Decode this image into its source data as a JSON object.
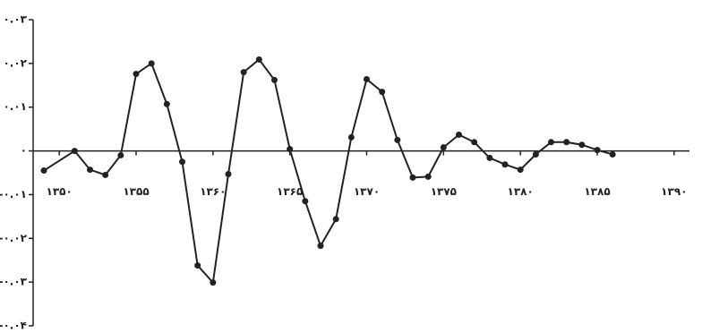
{
  "chart_data": {
    "type": "line",
    "x": [
      1349,
      1351,
      1352,
      1353,
      1354,
      1355,
      1356,
      1357,
      1358,
      1359,
      1360,
      1361,
      1362,
      1363,
      1364,
      1365,
      1366,
      1367,
      1368,
      1369,
      1370,
      1371,
      1372,
      1373,
      1374,
      1375,
      1376,
      1377,
      1378,
      1379,
      1380,
      1381,
      1382,
      1383,
      1384,
      1385,
      1386
    ],
    "values": [
      -0.0045,
      0,
      -0.0043,
      -0.0055,
      -0.001,
      0.0176,
      0.02,
      0.0107,
      -0.0025,
      -0.0262,
      -0.0301,
      -0.0053,
      0.018,
      0.0209,
      0.0162,
      0.0004,
      -0.0115,
      -0.0217,
      -0.0156,
      0.0031,
      0.0164,
      0.0135,
      0.0025,
      -0.0061,
      -0.0059,
      0.0008,
      0.0037,
      0.002,
      -0.0016,
      -0.0031,
      -0.0043,
      -0.0008,
      0.002,
      0.002,
      0.0014,
      0.0002,
      -0.0008
    ],
    "color": "#222222",
    "xlim": [
      1348.3,
      1391
    ],
    "xticks": [
      {
        "value": 1350,
        "label": "۱۳۵۰"
      },
      {
        "value": 1355,
        "label": "۱۳۵۵"
      },
      {
        "value": 1360,
        "label": "۱۳۶۰"
      },
      {
        "value": 1365,
        "label": "۱۳۶۵"
      },
      {
        "value": 1370,
        "label": "۱۳۷۰"
      },
      {
        "value": 1375,
        "label": "۱۳۷۵"
      },
      {
        "value": 1380,
        "label": "۱۳۸۰"
      },
      {
        "value": 1385,
        "label": "۱۳۸۵"
      },
      {
        "value": 1390,
        "label": "۱۳۹۰"
      }
    ],
    "ylim": [
      -0.04,
      0.03
    ],
    "yticks": [
      {
        "value": -0.04,
        "label": "-۰.۰۴"
      },
      {
        "value": -0.03,
        "label": "-۰.۰۳"
      },
      {
        "value": -0.02,
        "label": "-۰.۰۲"
      },
      {
        "value": -0.01,
        "label": "-۰.۰۱"
      },
      {
        "value": 0,
        "label": "۰"
      },
      {
        "value": 0.01,
        "label": "۰.۰۱"
      },
      {
        "value": 0.02,
        "label": "۰.۰۲"
      },
      {
        "value": 0.03,
        "label": "۰.۰۳"
      }
    ]
  }
}
